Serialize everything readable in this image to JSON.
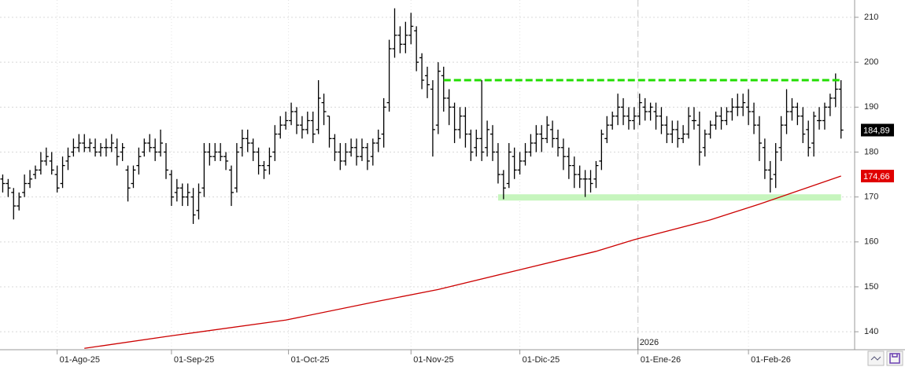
{
  "chart_data": {
    "type": "ohlc",
    "color": "#000000",
    "open": [
      174,
      173,
      171,
      168,
      171,
      173,
      175,
      176,
      178,
      178,
      175,
      173,
      178,
      180,
      181,
      182,
      181,
      181,
      180,
      181,
      181,
      181,
      180,
      176,
      173,
      177,
      180,
      182,
      181,
      180,
      180,
      175,
      171,
      172,
      170,
      170,
      167,
      172,
      180,
      179,
      180,
      179,
      176,
      172,
      181,
      183,
      182,
      180,
      177,
      177,
      180,
      184,
      186,
      187,
      189,
      186,
      185,
      187,
      185,
      191,
      188,
      183,
      180,
      178,
      180,
      181,
      179,
      181,
      179,
      182,
      184,
      191,
      203,
      206,
      204,
      206,
      207,
      201,
      197,
      194,
      186,
      197,
      192,
      190,
      185,
      188,
      184,
      181,
      183,
      181,
      184,
      180,
      175,
      173,
      179,
      176,
      178,
      180,
      182,
      184,
      183,
      185,
      183,
      181,
      179,
      177,
      175,
      174,
      174,
      174,
      178,
      183,
      186,
      188,
      190,
      188,
      187,
      188,
      190,
      189,
      189,
      188,
      186,
      184,
      185,
      183,
      184,
      187,
      186,
      181,
      184,
      186,
      188,
      187,
      189,
      190,
      190,
      190,
      189,
      186,
      181,
      176,
      175,
      181,
      186,
      189,
      190,
      188,
      185,
      182,
      187,
      187,
      190,
      192,
      194
    ],
    "high": [
      175,
      174,
      172,
      171,
      175,
      176,
      177,
      180,
      181,
      180,
      177,
      179,
      181,
      183,
      184,
      184,
      183,
      183,
      182,
      183,
      184,
      183,
      182,
      177,
      177,
      181,
      183,
      184,
      183,
      185,
      182,
      176,
      174,
      173,
      173,
      172,
      173,
      182,
      182,
      182,
      182,
      180,
      177,
      182,
      185,
      185,
      183,
      181,
      178,
      181,
      186,
      188,
      189,
      191,
      190,
      188,
      189,
      189,
      196,
      193,
      188,
      184,
      182,
      182,
      183,
      183,
      183,
      182,
      183,
      185,
      192,
      205,
      212,
      208,
      209,
      211,
      208,
      202,
      199,
      196,
      200,
      199,
      194,
      191,
      190,
      190,
      185,
      185,
      196,
      187,
      186,
      182,
      176,
      182,
      181,
      180,
      182,
      184,
      186,
      186,
      188,
      187,
      185,
      183,
      181,
      179,
      177,
      176,
      176,
      178,
      185,
      188,
      189,
      193,
      192,
      190,
      190,
      193,
      192,
      191,
      191,
      190,
      188,
      187,
      187,
      186,
      190,
      190,
      189,
      185,
      187,
      189,
      190,
      190,
      192,
      193,
      193,
      194,
      191,
      188,
      183,
      178,
      182,
      188,
      194,
      192,
      191,
      190,
      187,
      189,
      190,
      191,
      193,
      197.5,
      196
    ],
    "low": [
      171,
      170,
      165,
      167,
      170,
      172,
      174,
      175,
      177,
      175,
      171,
      172,
      176,
      179,
      180,
      180,
      180,
      179,
      179,
      179,
      180,
      177,
      178,
      169,
      172,
      175,
      179,
      180,
      178,
      179,
      174,
      168,
      169,
      168,
      168,
      164,
      165,
      170,
      177,
      178,
      178,
      176,
      168,
      171,
      179,
      180,
      178,
      175,
      174,
      175,
      178,
      183,
      185,
      186,
      184,
      183,
      184,
      182,
      184,
      186,
      181,
      178,
      176,
      177,
      179,
      177,
      178,
      176,
      177,
      180,
      181,
      189,
      201,
      202,
      202,
      204,
      198,
      194,
      192,
      179,
      184,
      189,
      186,
      182,
      183,
      181,
      178,
      179,
      178,
      179,
      178,
      173,
      169.5,
      172,
      174,
      175,
      177,
      179,
      180,
      180,
      182,
      181,
      179,
      176,
      174,
      172,
      172,
      170,
      171,
      172,
      176,
      182,
      185,
      186,
      186,
      185,
      185,
      186,
      187,
      187,
      185,
      184,
      182,
      182,
      181,
      182,
      183,
      185,
      177,
      179,
      183,
      185,
      185,
      186,
      187,
      188,
      188,
      186,
      184,
      178,
      174,
      171,
      172,
      178,
      184,
      187,
      186,
      182,
      179,
      179,
      185,
      185,
      188,
      190,
      183
    ],
    "close": [
      173,
      172,
      168,
      170,
      173,
      174,
      176,
      178,
      179,
      176,
      172,
      177,
      179,
      181,
      182,
      181,
      182,
      180,
      181,
      181,
      182,
      179,
      181,
      172,
      176,
      179,
      182,
      181,
      180,
      182,
      176,
      170,
      172,
      170,
      171,
      166,
      171,
      180,
      179,
      180,
      179,
      178,
      171,
      180,
      183,
      182,
      180,
      177,
      176,
      179,
      184,
      186,
      187,
      189,
      186,
      185,
      187,
      184,
      192,
      189,
      183,
      180,
      178,
      180,
      181,
      179,
      181,
      178,
      182,
      183,
      190,
      203,
      206,
      204,
      206,
      208,
      200,
      196,
      195,
      185,
      198,
      192,
      190,
      185,
      188,
      184,
      180,
      183,
      180,
      185,
      180,
      175,
      172,
      180,
      176,
      178,
      180,
      182,
      184,
      183,
      186,
      183,
      181,
      179,
      177,
      175,
      174,
      174,
      173,
      177,
      184,
      186,
      188,
      190,
      188,
      187,
      188,
      191,
      189,
      190,
      188,
      186,
      184,
      185,
      183,
      184,
      188,
      187,
      180,
      184,
      186,
      188,
      187,
      189,
      190,
      190,
      191,
      189,
      186,
      182,
      176,
      174,
      180,
      186,
      189,
      190,
      188,
      184,
      181,
      188,
      187,
      190,
      192,
      194,
      184.89
    ],
    "xlim": [
      -0.5,
      156.5
    ],
    "xticks": [
      {
        "value": 10,
        "label": "01-Ago-25"
      },
      {
        "value": 31,
        "label": "01-Sep-25"
      },
      {
        "value": 52.5,
        "label": "01-Oct-25"
      },
      {
        "value": 75,
        "label": "01-Nov-25"
      },
      {
        "value": 95,
        "label": "01-Dic-25"
      },
      {
        "value": 116.7,
        "label": "01-Ene-26"
      },
      {
        "value": 137,
        "label": "01-Feb-26"
      }
    ],
    "year_marker": {
      "value": 116.7,
      "label": "2026"
    },
    "ylim": [
      136,
      213.85
    ],
    "yticks": [
      140,
      150,
      160,
      170,
      180,
      190,
      200,
      210
    ],
    "grid": true,
    "moving_average": {
      "color": "#cc0000",
      "x": [
        15,
        31,
        52,
        69,
        80,
        95,
        109,
        116,
        130,
        139,
        154
      ],
      "values": [
        136.3,
        139.1,
        142.6,
        146.8,
        149.4,
        153.8,
        157.9,
        160.5,
        164.9,
        168.4,
        174.66
      ]
    },
    "resistance": {
      "value": 196,
      "x": [
        81,
        154
      ],
      "color": "#22dd00"
    },
    "support": {
      "value": 169.9,
      "x": [
        91,
        154
      ],
      "color": "#c6f5bd"
    },
    "price_tags": [
      {
        "value": 184.89,
        "label": "184,89",
        "color": "#000000"
      },
      {
        "value": 174.66,
        "label": "174,66",
        "color": "#e00000"
      }
    ]
  }
}
